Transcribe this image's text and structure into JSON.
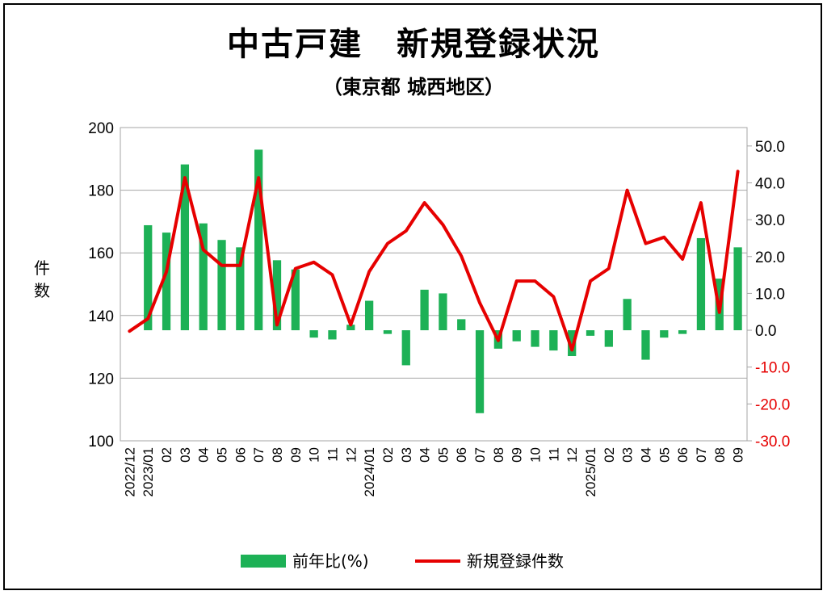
{
  "chart_data": {
    "type": "bar+line",
    "title": "中古戸建　新規登録状況",
    "subtitle": "（東京都 城西地区）",
    "ylabel_left": "件数",
    "categories": [
      "2022/12",
      "2023/01",
      "02",
      "03",
      "04",
      "05",
      "06",
      "07",
      "08",
      "09",
      "10",
      "11",
      "12",
      "2024/01",
      "02",
      "03",
      "04",
      "05",
      "06",
      "07",
      "08",
      "09",
      "10",
      "11",
      "12",
      "2025/01",
      "02",
      "03",
      "04",
      "05",
      "06",
      "07",
      "08",
      "09"
    ],
    "left_axis": {
      "min": 100,
      "max": 200,
      "ticks": [
        "100",
        "120",
        "140",
        "160",
        "180",
        "200"
      ]
    },
    "right_axis": {
      "min": -30,
      "max": 55,
      "ticks": [
        "-30.0",
        "-20.0",
        "-10.0",
        "0.0",
        "10.0",
        "20.0",
        "30.0",
        "40.0",
        "50.0"
      ],
      "negative_color": "#e60000"
    },
    "series": [
      {
        "name": "前年比(%)",
        "type": "bar",
        "axis": "right",
        "color": "#1db156",
        "values": [
          null,
          28.5,
          26.5,
          45,
          29,
          24.5,
          22.5,
          49,
          19,
          16.5,
          -2,
          -2.5,
          1.5,
          8,
          -1,
          -9.5,
          11,
          10,
          3,
          -22.5,
          -5,
          -3,
          -4.5,
          -5.5,
          -7,
          -1.5,
          -4.5,
          8.5,
          -8,
          -2,
          -1,
          25,
          14,
          22.5
        ]
      },
      {
        "name": "新規登録件数",
        "type": "line",
        "axis": "left",
        "color": "#e60000",
        "values": [
          135,
          139,
          154,
          184,
          161,
          156,
          156,
          184,
          137,
          155,
          157,
          153,
          137,
          154,
          163,
          167,
          176,
          169,
          159,
          144,
          132,
          151,
          151,
          146,
          129,
          151,
          155,
          180,
          163,
          165,
          158,
          176,
          141,
          186
        ]
      }
    ],
    "legend": {
      "position": "bottom",
      "bar_label": "前年比(%)",
      "line_label": "新規登録件数"
    },
    "grid": true
  }
}
